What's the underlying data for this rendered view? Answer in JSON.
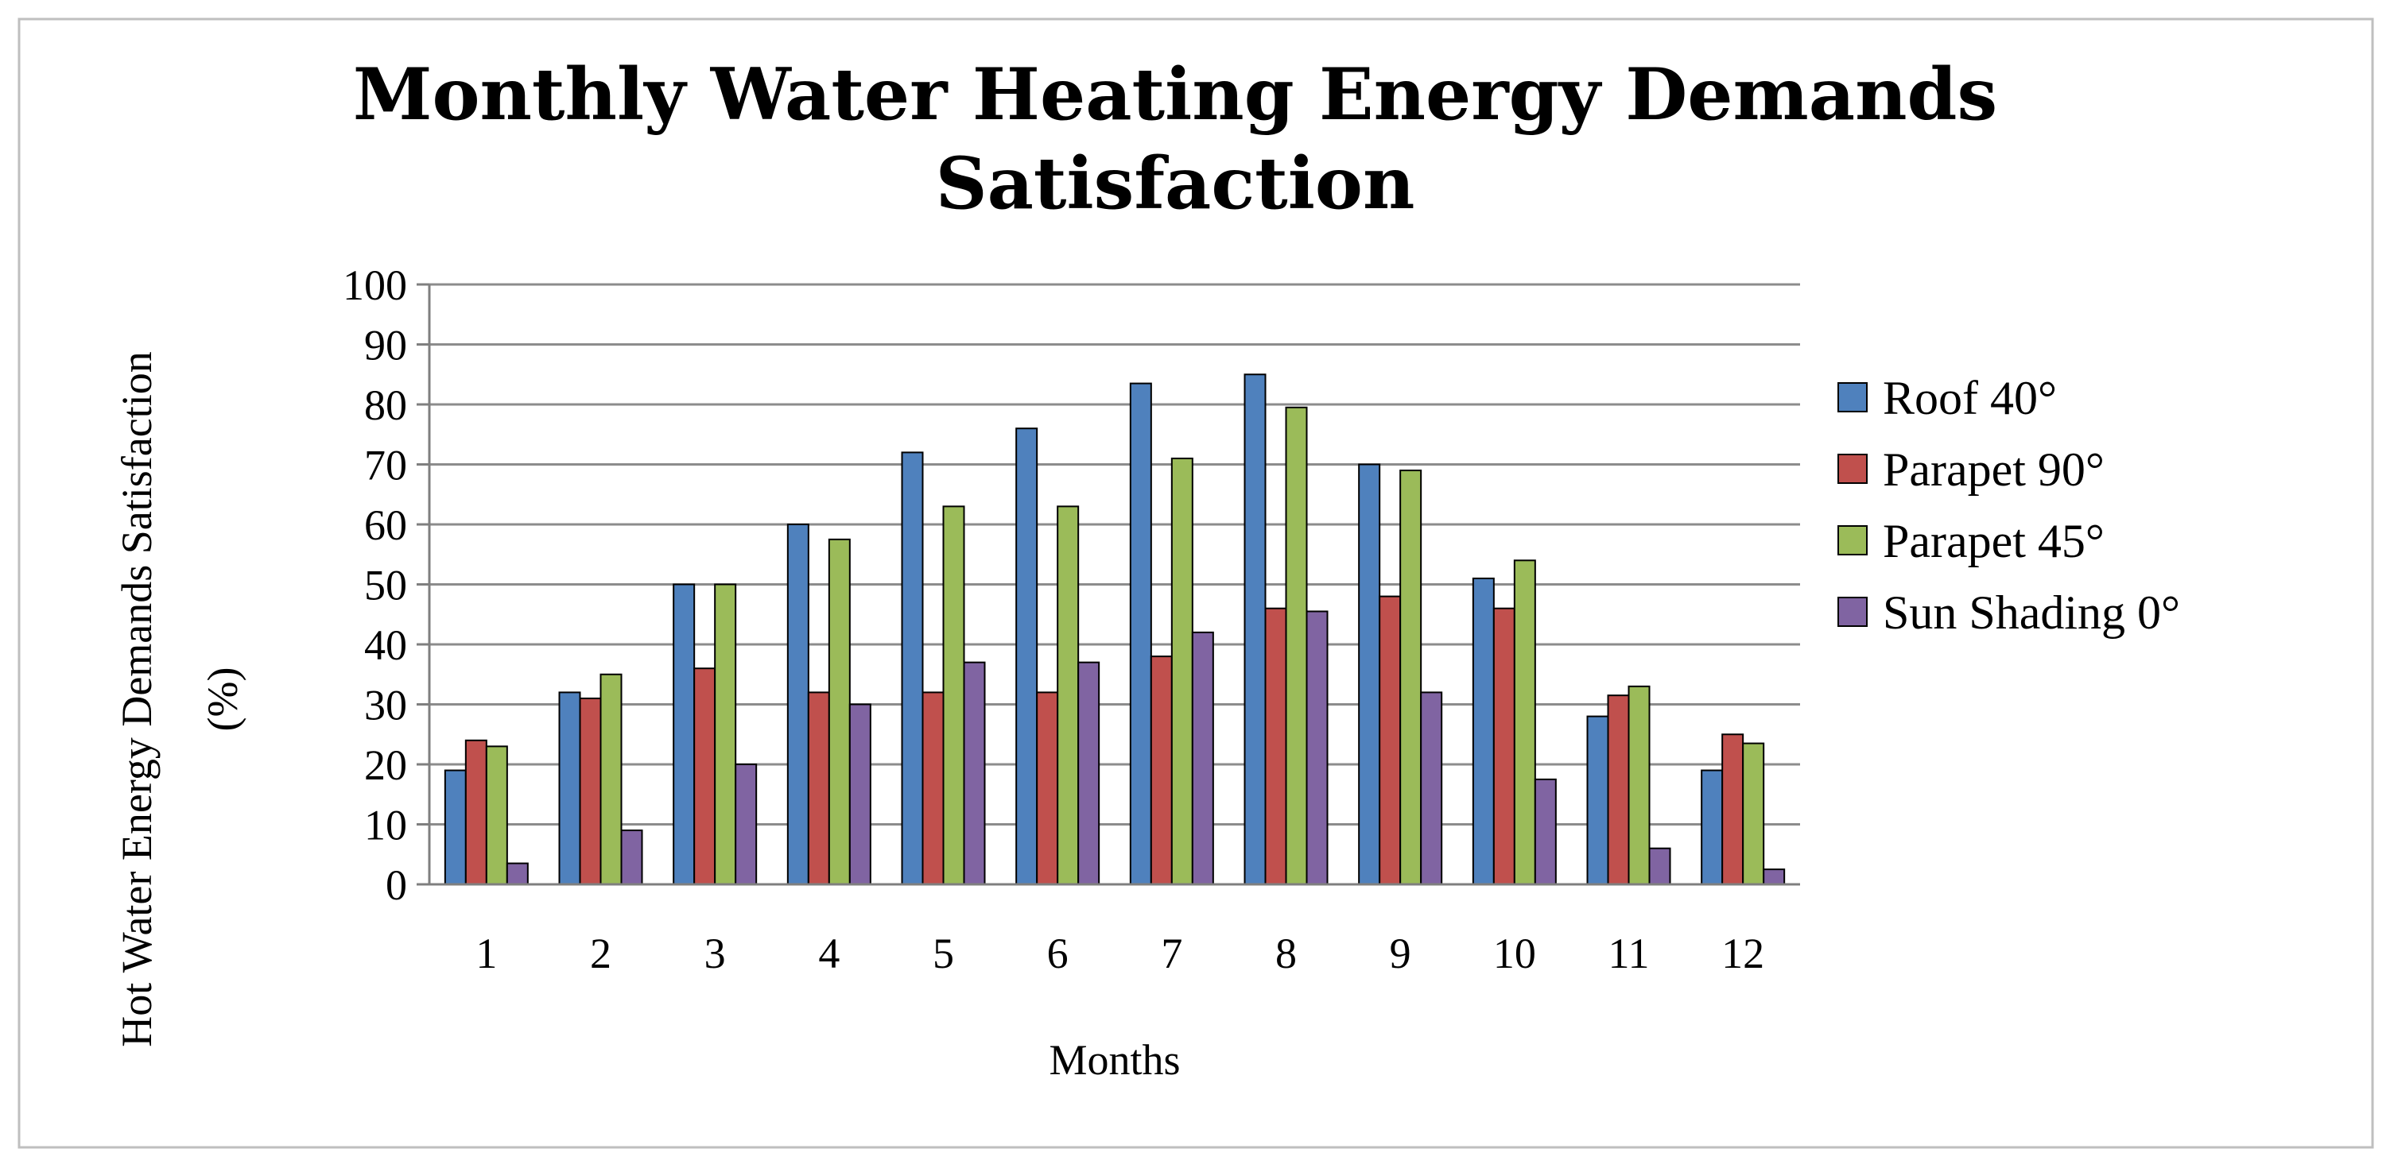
{
  "chart_data": {
    "type": "bar",
    "title_lines": [
      "Monthly Water Heating Energy Demands",
      "Satisfaction"
    ],
    "xlabel": "Months",
    "ylabel_lines": [
      "Hot Water Energy Demands Satisfaction",
      "(%)"
    ],
    "ylim": [
      0,
      100
    ],
    "yticks": [
      0,
      10,
      20,
      30,
      40,
      50,
      60,
      70,
      80,
      90,
      100
    ],
    "grid": true,
    "legend_position": "right",
    "categories": [
      "1",
      "2",
      "3",
      "4",
      "5",
      "6",
      "7",
      "8",
      "9",
      "10",
      "11",
      "12"
    ],
    "series": [
      {
        "name": "Roof 40°",
        "color": "#4f81bd",
        "values": [
          19,
          32,
          50,
          60,
          72,
          76,
          83.5,
          85,
          70,
          51,
          28,
          19
        ]
      },
      {
        "name": "Parapet 90°",
        "color": "#c0504d",
        "values": [
          24,
          31,
          36,
          32,
          32,
          32,
          38,
          46,
          48,
          46,
          31.5,
          25
        ]
      },
      {
        "name": "Parapet 45°",
        "color": "#9bbb59",
        "values": [
          23,
          35,
          50,
          57.5,
          63,
          63,
          71,
          79.5,
          69,
          54,
          33,
          23.5
        ]
      },
      {
        "name": "Sun Shading 0°",
        "color": "#8064a2",
        "values": [
          3.5,
          9,
          20,
          30,
          37,
          37,
          42,
          45.5,
          32,
          17.5,
          6,
          2.5
        ]
      }
    ]
  }
}
